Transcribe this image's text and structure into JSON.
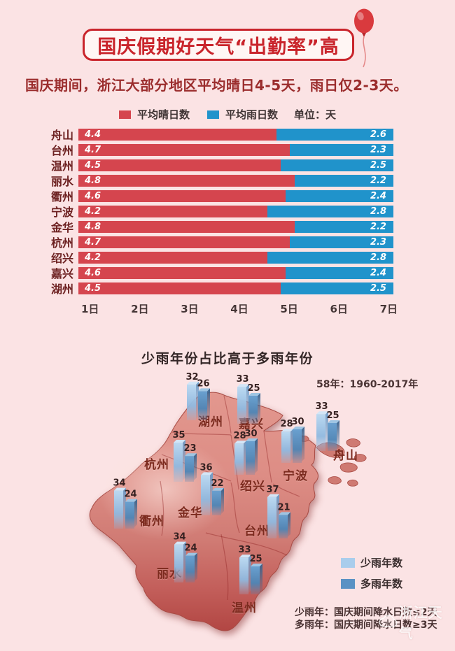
{
  "colors": {
    "background": "#fbe3e4",
    "banner_red": "#c9242b",
    "sunny_red": "#d5454e",
    "rainy_blue": "#2093cb",
    "few_rain_blue": "#a9cdec",
    "many_rain_blue": "#5a92c4"
  },
  "header": {
    "title": "国庆假期好天气“出勤率”高",
    "subtitle": "国庆期间，浙江大部分地区平均晴日4-5天，雨日仅2-3天。"
  },
  "day_chart": {
    "legend_sunny": "平均晴日数",
    "legend_rainy": "平均雨日数",
    "unit_label": "单位：天"
  },
  "map_chart": {
    "title": "少雨年份占比高于多雨年份",
    "years_note": "58年：1960-2017年",
    "legend_few": "少雨年数",
    "legend_many": "多雨年数",
    "footnote_few": "少雨年：国庆期间降水日数≤2天",
    "footnote_many": "多雨年：国庆期间降水日数≥3天"
  },
  "watermark": {
    "label": "浙江天气"
  },
  "chart_data": [
    {
      "type": "bar",
      "orientation": "horizontal",
      "stacked": true,
      "title": "",
      "unit": "天",
      "categories": [
        "舟山",
        "台州",
        "温州",
        "丽水",
        "衢州",
        "宁波",
        "金华",
        "杭州",
        "绍兴",
        "嘉兴",
        "湖州"
      ],
      "series": [
        {
          "name": "平均晴日数",
          "color": "#d5454e",
          "values": [
            4.4,
            4.7,
            4.5,
            4.8,
            4.6,
            4.2,
            4.8,
            4.7,
            4.2,
            4.6,
            4.5
          ]
        },
        {
          "name": "平均雨日数",
          "color": "#2093cb",
          "values": [
            2.6,
            2.3,
            2.5,
            2.2,
            2.4,
            2.8,
            2.2,
            2.3,
            2.8,
            2.4,
            2.5
          ]
        }
      ],
      "xlim": [
        0,
        7
      ],
      "x_ticks": [
        "1日",
        "2日",
        "3日",
        "4日",
        "5日",
        "6日",
        "7日"
      ],
      "legend_position": "top",
      "grid": false
    },
    {
      "type": "bar",
      "title": "少雨年份占比高于多雨年份",
      "subtitle": "58年：1960-2017年",
      "layout": "bars-overlaid-on-zhejiang-map",
      "categories": [
        "湖州",
        "嘉兴",
        "舟山",
        "杭州",
        "绍兴",
        "宁波",
        "衢州",
        "金华",
        "台州",
        "丽水",
        "温州"
      ],
      "series": [
        {
          "name": "少雨年数",
          "color": "#a9cdec",
          "values": [
            32,
            33,
            33,
            35,
            28,
            28,
            34,
            36,
            37,
            34,
            33
          ]
        },
        {
          "name": "多雨年数",
          "color": "#5a92c4",
          "values": [
            26,
            25,
            25,
            23,
            30,
            30,
            24,
            22,
            21,
            24,
            25
          ]
        }
      ],
      "annotations": [
        "少雨年：国庆期间降水日数≤2天",
        "多雨年：国庆期间降水日数≥3天"
      ],
      "legend_position": "right"
    }
  ]
}
